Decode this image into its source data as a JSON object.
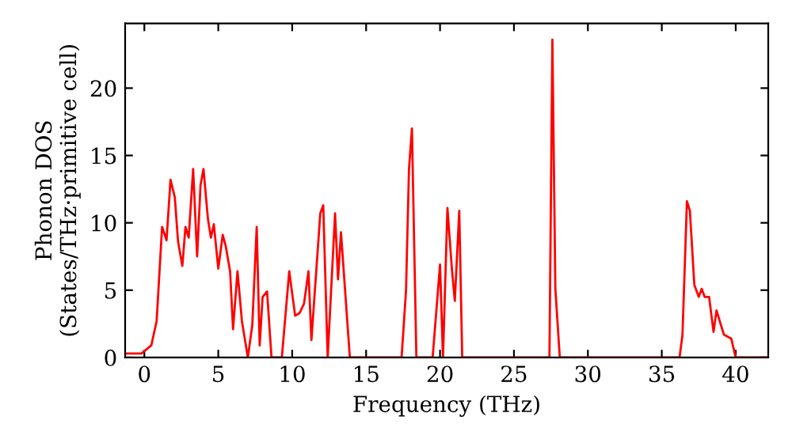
{
  "chart_data": {
    "type": "line",
    "xlabel": "Frequency (THz)",
    "ylabel": "Phonon DOS\n(States/THz·primitive cell)",
    "xlim": [
      -1.3,
      42.2
    ],
    "ylim": [
      0,
      24.8
    ],
    "xticks": [
      0,
      5,
      10,
      15,
      20,
      25,
      30,
      35,
      40
    ],
    "yticks": [
      0,
      5,
      10,
      15,
      20
    ],
    "grid": false,
    "marker": "none",
    "line_style": "solid",
    "series": [
      {
        "color": "#ff0000",
        "x": [
          -1.3,
          -0.2,
          0.47,
          0.83,
          1.2,
          1.5,
          1.77,
          2.06,
          2.28,
          2.57,
          2.78,
          3.0,
          3.3,
          3.57,
          3.8,
          4.0,
          4.3,
          4.5,
          4.7,
          5.0,
          5.3,
          5.5,
          5.8,
          6.0,
          6.3,
          6.6,
          7.0,
          7.3,
          7.6,
          7.8,
          8.0,
          8.3,
          8.6,
          9.3,
          9.8,
          10.2,
          10.5,
          10.8,
          11.1,
          11.3,
          11.9,
          12.1,
          12.4,
          12.9,
          13.1,
          13.3,
          13.9,
          17.4,
          17.7,
          17.9,
          18.1,
          18.4,
          19.5,
          20.0,
          20.2,
          20.5,
          20.8,
          21.0,
          21.3,
          21.5,
          27.4,
          27.6,
          27.8,
          28.1,
          36.2,
          36.4,
          36.7,
          36.9,
          37.2,
          37.5,
          37.7,
          37.9,
          38.2,
          38.5,
          38.7,
          39.2,
          39.7,
          40.0,
          42.2
        ],
        "values": [
          0.3,
          0.3,
          0.9,
          2.7,
          9.7,
          8.7,
          13.2,
          11.9,
          8.6,
          6.8,
          9.7,
          8.9,
          14.0,
          7.5,
          12.8,
          14.0,
          10.3,
          8.9,
          9.9,
          6.6,
          9.1,
          8.3,
          6.4,
          2.1,
          6.4,
          2.7,
          0,
          2.4,
          9.7,
          0.9,
          4.5,
          4.9,
          0,
          0,
          6.4,
          3.1,
          3.3,
          4.0,
          6.4,
          1.3,
          10.7,
          11.3,
          0,
          10.7,
          5.8,
          9.3,
          0,
          0,
          5.0,
          14.0,
          17.0,
          0,
          0,
          6.9,
          0,
          11.1,
          6.6,
          4.2,
          10.9,
          0,
          0,
          23.6,
          5.1,
          0,
          0,
          1.7,
          11.6,
          10.9,
          5.4,
          4.5,
          5.1,
          4.5,
          4.5,
          1.9,
          3.5,
          1.7,
          1.4,
          0,
          0
        ]
      }
    ]
  }
}
